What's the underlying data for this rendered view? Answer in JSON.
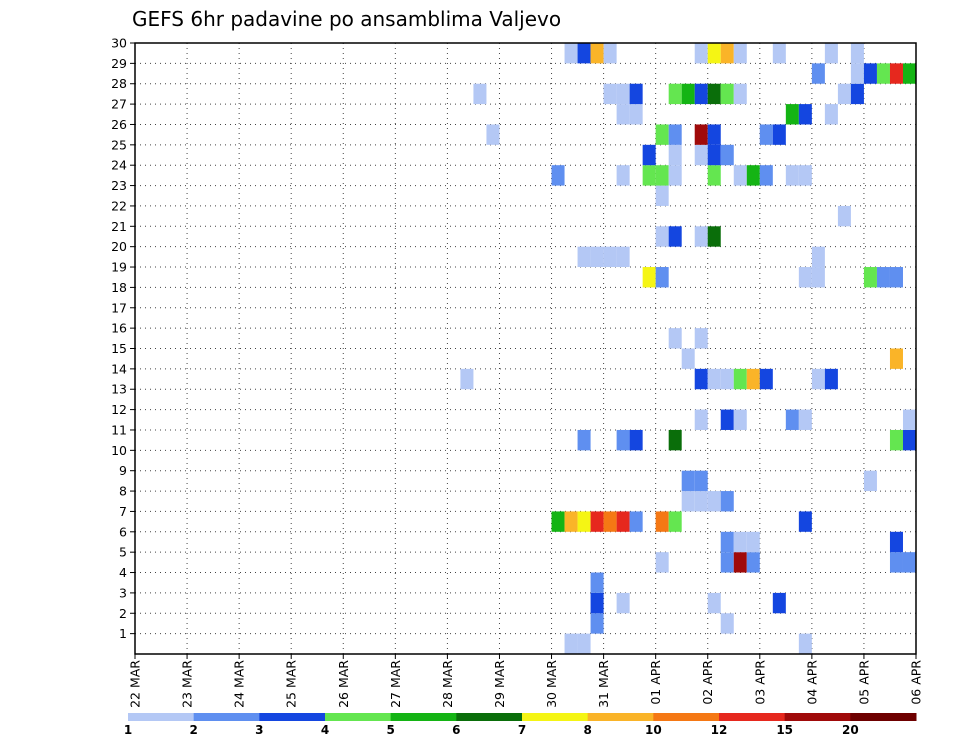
{
  "chart_data": {
    "type": "heatmap",
    "title": "GEFS 6hr padavine po ansamblima Valjevo",
    "x_tick_labels": [
      "22 MAR",
      "23 MAR",
      "24 MAR",
      "25 MAR",
      "26 MAR",
      "27 MAR",
      "28 MAR",
      "29 MAR",
      "30 MAR",
      "31 MAR",
      "01 APR",
      "02 APR",
      "03 APR",
      "04 APR",
      "05 APR",
      "06 APR"
    ],
    "y_tick_labels": [
      "1",
      "2",
      "3",
      "4",
      "5",
      "6",
      "7",
      "8",
      "9",
      "10",
      "11",
      "12",
      "13",
      "14",
      "15",
      "16",
      "17",
      "18",
      "19",
      "20",
      "21",
      "22",
      "23",
      "24",
      "25",
      "26",
      "27",
      "28",
      "29",
      "30"
    ],
    "x_unit": "6-hour step from 22 MAR 00Z",
    "xlim": [
      0,
      60
    ],
    "ylim": [
      0,
      30
    ],
    "grid": true,
    "colorbar": {
      "levels": [
        "1",
        "2",
        "3",
        "4",
        "5",
        "6",
        "7",
        "8",
        "10",
        "12",
        "15",
        "20"
      ],
      "colors": [
        "#b4c8f5",
        "#5f8ff0",
        "#1446e0",
        "#64e650",
        "#14b414",
        "#0a6e0a",
        "#f5f514",
        "#fab428",
        "#f57814",
        "#e6281e",
        "#a00a0a",
        "#6e0000"
      ]
    },
    "cells": [
      [
        33,
        0,
        0
      ],
      [
        34,
        0,
        0
      ],
      [
        51,
        0,
        0
      ],
      [
        35,
        1,
        1
      ],
      [
        45,
        1,
        0
      ],
      [
        35,
        2,
        2
      ],
      [
        37,
        2,
        0
      ],
      [
        44,
        2,
        0
      ],
      [
        49,
        2,
        2
      ],
      [
        35,
        3,
        1
      ],
      [
        40,
        4,
        0
      ],
      [
        45,
        4,
        1
      ],
      [
        46,
        4,
        10
      ],
      [
        47,
        4,
        1
      ],
      [
        58,
        4,
        1
      ],
      [
        59,
        4,
        1
      ],
      [
        45,
        5,
        1
      ],
      [
        46,
        5,
        0
      ],
      [
        47,
        5,
        0
      ],
      [
        58,
        5,
        2
      ],
      [
        32,
        6,
        4
      ],
      [
        33,
        6,
        7
      ],
      [
        34,
        6,
        6
      ],
      [
        35,
        6,
        9
      ],
      [
        36,
        6,
        8
      ],
      [
        37,
        6,
        9
      ],
      [
        38,
        6,
        1
      ],
      [
        40,
        6,
        8
      ],
      [
        41,
        6,
        3
      ],
      [
        51,
        6,
        2
      ],
      [
        42,
        7,
        0
      ],
      [
        43,
        7,
        0
      ],
      [
        44,
        7,
        0
      ],
      [
        45,
        7,
        1
      ],
      [
        42,
        8,
        1
      ],
      [
        43,
        8,
        1
      ],
      [
        56,
        8,
        0
      ],
      [
        34,
        10,
        1
      ],
      [
        37,
        10,
        1
      ],
      [
        38,
        10,
        2
      ],
      [
        41,
        10,
        5
      ],
      [
        58,
        10,
        3
      ],
      [
        59,
        10,
        2
      ],
      [
        43,
        11,
        0
      ],
      [
        45,
        11,
        2
      ],
      [
        46,
        11,
        0
      ],
      [
        50,
        11,
        1
      ],
      [
        51,
        11,
        0
      ],
      [
        59,
        11,
        0
      ],
      [
        25,
        13,
        0
      ],
      [
        43,
        13,
        2
      ],
      [
        44,
        13,
        0
      ],
      [
        45,
        13,
        0
      ],
      [
        46,
        13,
        3
      ],
      [
        47,
        13,
        7
      ],
      [
        48,
        13,
        2
      ],
      [
        52,
        13,
        0
      ],
      [
        53,
        13,
        2
      ],
      [
        42,
        14,
        0
      ],
      [
        58,
        14,
        7
      ],
      [
        41,
        15,
        0
      ],
      [
        43,
        15,
        0
      ],
      [
        60,
        17,
        1
      ],
      [
        39,
        18,
        6
      ],
      [
        40,
        18,
        1
      ],
      [
        51,
        18,
        0
      ],
      [
        52,
        18,
        0
      ],
      [
        56,
        18,
        3
      ],
      [
        57,
        18,
        1
      ],
      [
        58,
        18,
        1
      ],
      [
        34,
        19,
        0
      ],
      [
        35,
        19,
        0
      ],
      [
        36,
        19,
        0
      ],
      [
        37,
        19,
        0
      ],
      [
        52,
        19,
        0
      ],
      [
        40,
        20,
        0
      ],
      [
        41,
        20,
        2
      ],
      [
        43,
        20,
        0
      ],
      [
        44,
        20,
        5
      ],
      [
        54,
        21,
        0
      ],
      [
        40,
        22,
        0
      ],
      [
        32,
        23,
        1
      ],
      [
        37,
        23,
        0
      ],
      [
        39,
        23,
        3
      ],
      [
        40,
        23,
        3
      ],
      [
        41,
        23,
        0
      ],
      [
        44,
        23,
        3
      ],
      [
        46,
        23,
        0
      ],
      [
        47,
        23,
        4
      ],
      [
        48,
        23,
        1
      ],
      [
        50,
        23,
        0
      ],
      [
        51,
        23,
        0
      ],
      [
        39,
        24,
        2
      ],
      [
        41,
        24,
        0
      ],
      [
        43,
        24,
        0
      ],
      [
        44,
        24,
        2
      ],
      [
        45,
        24,
        1
      ],
      [
        27,
        25,
        0
      ],
      [
        40,
        25,
        3
      ],
      [
        41,
        25,
        1
      ],
      [
        43,
        25,
        10
      ],
      [
        44,
        25,
        2
      ],
      [
        48,
        25,
        1
      ],
      [
        49,
        25,
        2
      ],
      [
        37,
        26,
        0
      ],
      [
        38,
        26,
        0
      ],
      [
        50,
        26,
        4
      ],
      [
        51,
        26,
        2
      ],
      [
        53,
        26,
        0
      ],
      [
        26,
        27,
        0
      ],
      [
        36,
        27,
        0
      ],
      [
        37,
        27,
        0
      ],
      [
        38,
        27,
        2
      ],
      [
        41,
        27,
        3
      ],
      [
        42,
        27,
        4
      ],
      [
        43,
        27,
        2
      ],
      [
        44,
        27,
        5
      ],
      [
        45,
        27,
        3
      ],
      [
        46,
        27,
        0
      ],
      [
        54,
        27,
        0
      ],
      [
        55,
        27,
        2
      ],
      [
        52,
        28,
        1
      ],
      [
        55,
        28,
        0
      ],
      [
        56,
        28,
        2
      ],
      [
        57,
        28,
        3
      ],
      [
        58,
        28,
        9
      ],
      [
        59,
        28,
        4
      ],
      [
        33,
        29,
        0
      ],
      [
        34,
        29,
        2
      ],
      [
        35,
        29,
        7
      ],
      [
        36,
        29,
        0
      ],
      [
        43,
        29,
        0
      ],
      [
        44,
        29,
        6
      ],
      [
        45,
        29,
        7
      ],
      [
        46,
        29,
        0
      ],
      [
        49,
        29,
        0
      ],
      [
        53,
        29,
        0
      ],
      [
        55,
        29,
        0
      ]
    ]
  }
}
